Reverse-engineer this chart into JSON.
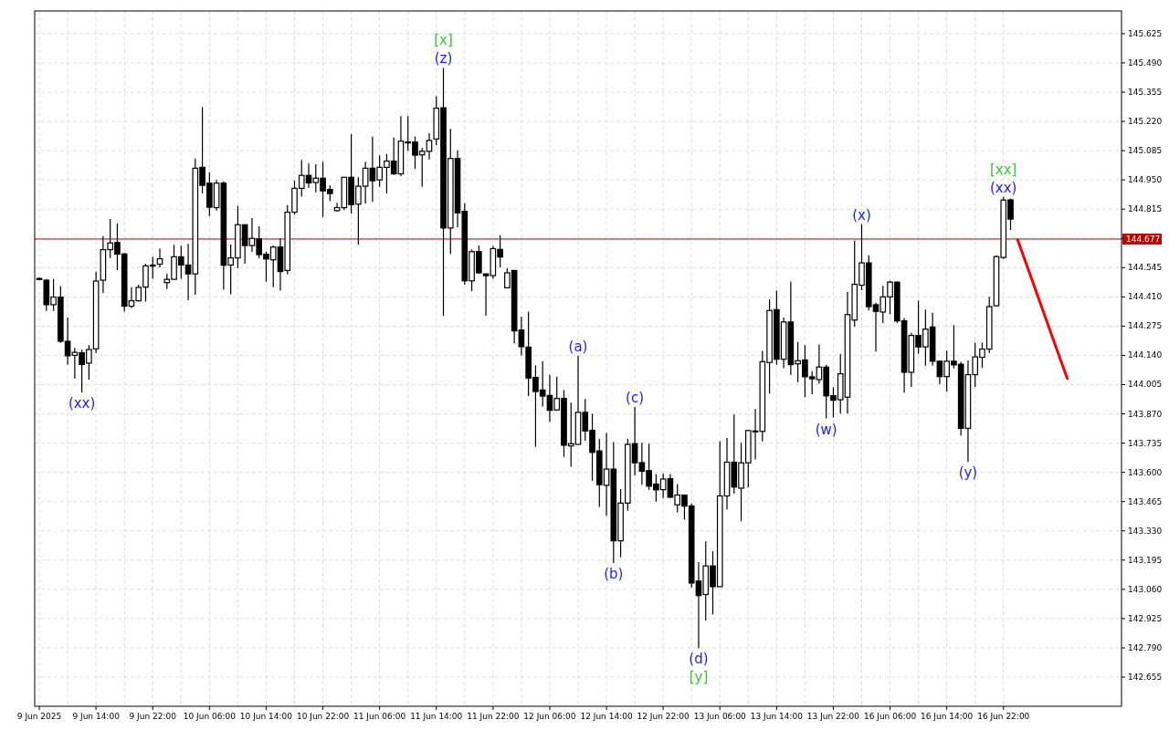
{
  "chart_data": {
    "type": "candlestick",
    "categories": [
      "9 Jun 2025",
      null,
      null,
      null,
      null,
      null,
      null,
      null,
      "9 Jun 14:00",
      null,
      null,
      null,
      null,
      null,
      null,
      null,
      "9 Jun 22:00",
      null,
      null,
      null,
      null,
      null,
      null,
      null,
      "10 Jun 06:00",
      null,
      null,
      null,
      null,
      null,
      null,
      null,
      "10 Jun 14:00",
      null,
      null,
      null,
      null,
      null,
      null,
      null,
      "10 Jun 22:00",
      null,
      null,
      null,
      null,
      null,
      null,
      null,
      "11 Jun 06:00",
      null,
      null,
      null,
      null,
      null,
      null,
      null,
      "11 Jun 14:00",
      null,
      null,
      null,
      null,
      null,
      null,
      null,
      "11 Jun 22:00",
      null,
      null,
      null,
      null,
      null,
      null,
      null,
      "12 Jun 06:00",
      null,
      null,
      null,
      null,
      null,
      null,
      null,
      "12 Jun 14:00",
      null,
      null,
      null,
      null,
      null,
      null,
      null,
      "12 Jun 22:00",
      null,
      null,
      null,
      null,
      null,
      null,
      null,
      "13 Jun 06:00",
      null,
      null,
      null,
      null,
      null,
      null,
      null,
      "13 Jun 14:00",
      null,
      null,
      null,
      null,
      null,
      null,
      null,
      "13 Jun 22:00",
      null,
      null,
      null,
      null,
      null,
      null,
      null,
      "16 Jun 06:00",
      null,
      null,
      null,
      null,
      null,
      null,
      null,
      "16 Jun 14:00",
      null,
      null,
      null,
      null,
      null,
      null,
      null,
      "16 Jun 22:00",
      null,
      null,
      null,
      null,
      null,
      null,
      null,
      null,
      null,
      null,
      null,
      null,
      null,
      null,
      null,
      null
    ],
    "ohlc": [
      [
        144.495,
        144.5,
        144.49,
        144.49
      ],
      [
        144.487,
        144.493,
        144.345,
        144.374
      ],
      [
        144.374,
        144.493,
        144.345,
        144.409
      ],
      [
        144.409,
        144.46,
        144.198,
        144.205
      ],
      [
        144.205,
        144.315,
        144.098,
        144.138
      ],
      [
        144.14,
        144.174,
        144.032,
        144.154
      ],
      [
        144.152,
        144.166,
        143.969,
        144.098
      ],
      [
        144.104,
        144.187,
        144.028,
        144.167
      ],
      [
        144.17,
        144.526,
        144.151,
        144.483
      ],
      [
        144.487,
        144.691,
        144.428,
        144.628
      ],
      [
        144.628,
        144.77,
        144.589,
        144.659
      ],
      [
        144.661,
        144.749,
        144.533,
        144.607
      ],
      [
        144.608,
        144.614,
        144.342,
        144.367
      ],
      [
        144.367,
        144.455,
        144.359,
        144.392
      ],
      [
        144.392,
        144.466,
        144.388,
        144.454
      ],
      [
        144.455,
        144.563,
        144.388,
        144.553
      ],
      [
        144.557,
        144.595,
        144.494,
        144.552
      ],
      [
        144.561,
        144.633,
        144.546,
        144.586
      ],
      [
        144.476,
        144.517,
        144.446,
        144.491
      ],
      [
        144.491,
        144.65,
        144.491,
        144.595
      ],
      [
        144.595,
        144.646,
        144.494,
        144.557
      ],
      [
        144.557,
        144.655,
        144.395,
        144.516
      ],
      [
        144.516,
        145.049,
        144.42,
        145.004
      ],
      [
        145.008,
        145.286,
        144.887,
        144.925
      ],
      [
        144.935,
        144.984,
        144.783,
        144.824
      ],
      [
        144.822,
        144.95,
        144.808,
        144.935
      ],
      [
        144.935,
        144.943,
        144.443,
        144.556
      ],
      [
        144.557,
        144.652,
        144.422,
        144.59
      ],
      [
        144.59,
        144.83,
        144.543,
        144.743
      ],
      [
        144.743,
        144.743,
        144.563,
        144.647
      ],
      [
        144.647,
        144.774,
        144.618,
        144.68
      ],
      [
        144.678,
        144.736,
        144.588,
        144.605
      ],
      [
        144.607,
        144.619,
        144.48,
        144.585
      ],
      [
        144.581,
        144.648,
        144.455,
        144.64
      ],
      [
        144.64,
        144.68,
        144.439,
        144.527
      ],
      [
        144.532,
        144.834,
        144.514,
        144.801
      ],
      [
        144.801,
        144.947,
        144.79,
        144.911
      ],
      [
        144.911,
        145.042,
        144.873,
        144.971
      ],
      [
        144.971,
        145.026,
        144.914,
        144.936
      ],
      [
        144.938,
        145.022,
        144.893,
        144.958
      ],
      [
        144.958,
        145.034,
        144.779,
        144.899
      ],
      [
        144.906,
        144.925,
        144.852,
        144.887
      ],
      [
        144.808,
        144.844,
        144.804,
        144.822
      ],
      [
        144.822,
        144.962,
        144.811,
        144.962
      ],
      [
        144.962,
        145.162,
        144.794,
        144.836
      ],
      [
        144.838,
        144.962,
        144.65,
        144.921
      ],
      [
        144.921,
        145.034,
        144.841,
        145.004
      ],
      [
        145.004,
        145.15,
        144.849,
        144.946
      ],
      [
        144.95,
        145.063,
        144.918,
        145.008
      ],
      [
        145.008,
        145.07,
        144.887,
        145.037
      ],
      [
        145.037,
        145.146,
        144.973,
        144.978
      ],
      [
        144.978,
        145.245,
        144.967,
        145.129
      ],
      [
        145.125,
        145.245,
        145.084,
        145.125
      ],
      [
        145.125,
        145.15,
        145.001,
        145.064
      ],
      [
        145.066,
        145.097,
        144.918,
        145.082
      ],
      [
        145.082,
        145.166,
        145.044,
        145.132
      ],
      [
        145.139,
        145.336,
        145.111,
        145.281
      ],
      [
        145.283,
        145.467,
        144.322,
        144.728
      ],
      [
        144.728,
        145.186,
        144.608,
        145.049
      ],
      [
        145.049,
        145.086,
        144.732,
        144.798
      ],
      [
        144.805,
        144.842,
        144.466,
        144.484
      ],
      [
        144.484,
        144.629,
        144.436,
        144.619
      ],
      [
        144.619,
        144.647,
        144.516,
        144.521
      ],
      [
        144.516,
        144.519,
        144.323,
        144.508
      ],
      [
        144.508,
        144.645,
        144.494,
        144.633
      ],
      [
        144.629,
        144.694,
        144.546,
        144.594
      ],
      [
        144.452,
        144.543,
        144.45,
        144.521
      ],
      [
        144.532,
        144.532,
        144.195,
        144.253
      ],
      [
        144.257,
        144.319,
        144.14,
        144.18
      ],
      [
        144.178,
        144.342,
        143.952,
        144.035
      ],
      [
        144.038,
        144.094,
        143.718,
        143.973
      ],
      [
        143.98,
        144.112,
        143.904,
        143.952
      ],
      [
        143.955,
        144.05,
        143.833,
        143.886
      ],
      [
        143.888,
        144.042,
        143.884,
        143.941
      ],
      [
        143.941,
        143.98,
        143.671,
        143.725
      ],
      [
        143.722,
        143.922,
        143.626,
        143.732
      ],
      [
        143.729,
        144.139,
        143.729,
        143.877
      ],
      [
        143.877,
        143.939,
        143.746,
        143.791
      ],
      [
        143.794,
        143.87,
        143.561,
        143.692
      ],
      [
        143.699,
        143.754,
        143.44,
        143.543
      ],
      [
        143.54,
        143.782,
        143.399,
        143.615
      ],
      [
        143.615,
        143.74,
        143.181,
        143.284
      ],
      [
        143.284,
        143.523,
        143.208,
        143.458
      ],
      [
        143.458,
        143.754,
        143.423,
        143.729
      ],
      [
        143.732,
        143.902,
        143.585,
        143.644
      ],
      [
        143.645,
        143.736,
        143.543,
        143.605
      ],
      [
        143.608,
        143.732,
        143.519,
        143.536
      ],
      [
        143.546,
        143.592,
        143.465,
        143.519
      ],
      [
        143.52,
        143.594,
        143.481,
        143.569
      ],
      [
        143.571,
        143.592,
        143.481,
        143.485
      ],
      [
        143.45,
        143.546,
        143.415,
        143.495
      ],
      [
        143.495,
        143.495,
        143.382,
        143.444
      ],
      [
        143.445,
        143.456,
        143.068,
        143.089
      ],
      [
        143.098,
        143.185,
        142.788,
        143.031
      ],
      [
        143.036,
        143.281,
        142.916,
        143.168
      ],
      [
        143.168,
        143.236,
        142.944,
        143.072
      ],
      [
        143.072,
        143.743,
        143.072,
        143.491
      ],
      [
        143.491,
        143.76,
        143.429,
        143.647
      ],
      [
        143.647,
        143.867,
        143.502,
        143.532
      ],
      [
        143.527,
        143.736,
        143.374,
        143.644
      ],
      [
        143.644,
        143.793,
        143.53,
        143.793
      ],
      [
        143.791,
        143.892,
        143.66,
        143.791
      ],
      [
        143.789,
        144.161,
        143.743,
        144.111
      ],
      [
        144.107,
        144.398,
        143.964,
        144.347
      ],
      [
        144.351,
        144.439,
        144.097,
        144.122
      ],
      [
        144.122,
        144.315,
        144.081,
        144.294
      ],
      [
        144.294,
        144.48,
        144.049,
        144.097
      ],
      [
        144.101,
        144.202,
        144.016,
        144.115
      ],
      [
        144.119,
        144.187,
        143.947,
        144.041
      ],
      [
        144.041,
        144.067,
        143.961,
        144.032
      ],
      [
        144.028,
        144.19,
        144.009,
        144.086
      ],
      [
        144.086,
        144.097,
        143.849,
        143.953
      ],
      [
        143.954,
        143.993,
        143.853,
        143.933
      ],
      [
        143.935,
        144.147,
        143.871,
        144.055
      ],
      [
        143.947,
        144.434,
        143.871,
        144.328
      ],
      [
        144.303,
        144.671,
        144.272,
        144.468
      ],
      [
        144.464,
        144.746,
        144.441,
        144.567
      ],
      [
        144.567,
        144.602,
        144.347,
        144.365
      ],
      [
        144.374,
        144.383,
        144.158,
        144.343
      ],
      [
        144.34,
        144.461,
        144.289,
        144.41
      ],
      [
        144.41,
        144.485,
        144.33,
        144.478
      ],
      [
        144.478,
        144.482,
        144.289,
        144.299
      ],
      [
        144.3,
        144.312,
        143.968,
        144.062
      ],
      [
        144.062,
        144.244,
        143.993,
        144.232
      ],
      [
        144.232,
        144.392,
        144.147,
        144.179
      ],
      [
        144.179,
        144.351,
        144.092,
        144.261
      ],
      [
        144.271,
        144.337,
        144.092,
        144.113
      ],
      [
        144.113,
        144.113,
        144.007,
        144.042
      ],
      [
        144.042,
        144.161,
        143.972,
        144.113
      ],
      [
        144.113,
        144.279,
        144.08,
        144.096
      ],
      [
        144.099,
        144.11,
        143.77,
        143.803
      ],
      [
        143.803,
        144.117,
        143.648,
        144.051
      ],
      [
        144.051,
        144.199,
        143.993,
        144.133
      ],
      [
        144.131,
        144.199,
        144.082,
        144.169
      ],
      [
        144.169,
        144.41,
        144.151,
        144.365
      ],
      [
        144.369,
        144.602,
        144.365,
        144.596
      ],
      [
        144.592,
        144.872,
        144.585,
        144.857
      ],
      [
        144.858,
        144.864,
        144.719,
        144.769
      ],
      null,
      null,
      null,
      null,
      null,
      null,
      null,
      null,
      null,
      null,
      null,
      null,
      null,
      null,
      null
    ],
    "series": [
      {
        "type": "line",
        "color": "#ff0000",
        "values": [
          null,
          null,
          null,
          null,
          null,
          null,
          null,
          null,
          null,
          null,
          null,
          null,
          null,
          null,
          null,
          null,
          null,
          null,
          null,
          null,
          null,
          null,
          null,
          null,
          null,
          null,
          null,
          null,
          null,
          null,
          null,
          null,
          null,
          null,
          null,
          null,
          null,
          null,
          null,
          null,
          null,
          null,
          null,
          null,
          null,
          null,
          null,
          null,
          null,
          null,
          null,
          null,
          null,
          null,
          null,
          null,
          null,
          null,
          null,
          null,
          null,
          null,
          null,
          null,
          null,
          null,
          null,
          null,
          null,
          null,
          null,
          null,
          null,
          null,
          null,
          null,
          null,
          null,
          null,
          null,
          null,
          null,
          null,
          null,
          null,
          null,
          null,
          null,
          null,
          null,
          null,
          null,
          null,
          null,
          null,
          null,
          null,
          null,
          null,
          null,
          null,
          null,
          null,
          null,
          null,
          null,
          null,
          null,
          null,
          null,
          null,
          null,
          null,
          null,
          null,
          null,
          null,
          null,
          null,
          null,
          null,
          null,
          null,
          null,
          null,
          null,
          null,
          null,
          null,
          null,
          null,
          null,
          null,
          null,
          null,
          null,
          null,
          null,
          144.674,
          144.582,
          144.491,
          144.399,
          144.307,
          144.216,
          144.124,
          144.033,
          null,
          null,
          null,
          null,
          null,
          null,
          null
        ]
      }
    ],
    "ylim": [
      142.52,
      145.73
    ],
    "yticks": [
      {
        "value": 145.625,
        "label": "145.625"
      },
      {
        "value": 145.49,
        "label": "145.490"
      },
      {
        "value": 145.355,
        "label": "145.355"
      },
      {
        "value": 145.22,
        "label": "145.220"
      },
      {
        "value": 145.085,
        "label": "145.085"
      },
      {
        "value": 144.95,
        "label": "144.950"
      },
      {
        "value": 144.815,
        "label": "144.815"
      },
      {
        "value": 144.68,
        "label": null
      },
      {
        "value": 144.545,
        "label": "144.545"
      },
      {
        "value": 144.41,
        "label": "144.410"
      },
      {
        "value": 144.275,
        "label": "144.275"
      },
      {
        "value": 144.14,
        "label": "144.140"
      },
      {
        "value": 144.005,
        "label": "144.005"
      },
      {
        "value": 143.87,
        "label": "143.870"
      },
      {
        "value": 143.735,
        "label": "143.735"
      },
      {
        "value": 143.6,
        "label": "143.600"
      },
      {
        "value": 143.465,
        "label": "143.465"
      },
      {
        "value": 143.33,
        "label": "143.330"
      },
      {
        "value": 143.195,
        "label": "143.195"
      },
      {
        "value": 143.06,
        "label": "143.060"
      },
      {
        "value": 142.925,
        "label": "142.925"
      },
      {
        "value": 142.79,
        "label": "142.790"
      },
      {
        "value": 142.655,
        "label": "142.655"
      }
    ],
    "grid": true,
    "ref_lines": [
      {
        "axis": "y",
        "value": 144.677,
        "label": "144.677",
        "color": "#c00000"
      }
    ],
    "annotations": [
      {
        "text": "(xx)",
        "y": 143.969
      },
      {
        "text": "(z)",
        "y": 145.467
      },
      {
        "text": "[x]",
        "y": 145.467
      },
      {
        "text": "(a)",
        "y": 144.139
      },
      {
        "text": "(b)",
        "y": 143.181
      },
      {
        "text": "(c)",
        "y": 143.902
      },
      {
        "text": "(d)",
        "y": 142.788
      },
      {
        "text": "[y]",
        "y": 142.788
      },
      {
        "text": "(w)",
        "y": 143.849
      },
      {
        "text": "(x)",
        "y": 144.746
      },
      {
        "text": "(y)",
        "y": 143.648
      },
      {
        "text": "(xx)",
        "y": 144.872
      },
      {
        "text": "[xx]",
        "y": 144.872
      }
    ]
  }
}
